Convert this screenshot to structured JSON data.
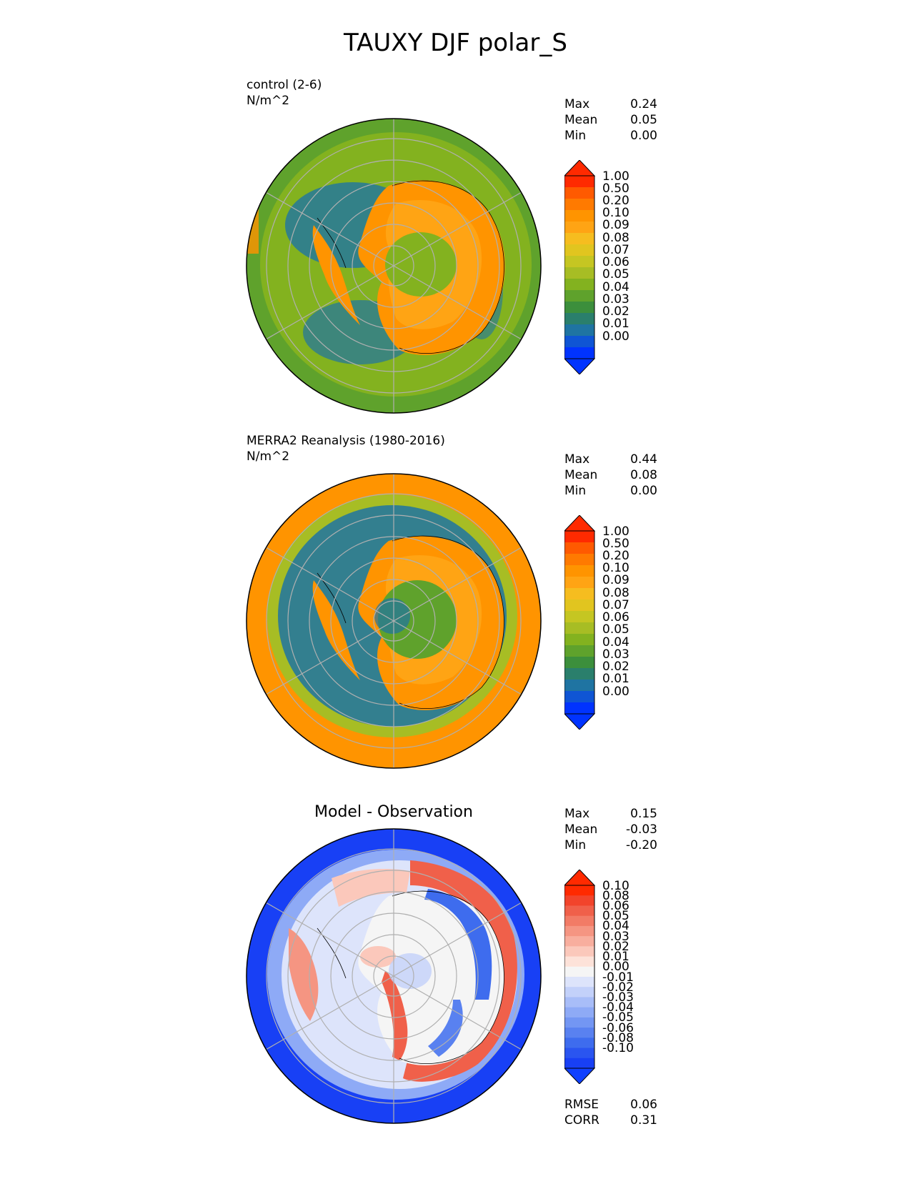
{
  "figure_title": "TAUXY DJF polar_S",
  "panels": [
    {
      "label_line1": "control (2-6)",
      "label_line2": "N/m^2",
      "stats": {
        "max_label": "Max",
        "max": "0.24",
        "mean_label": "Mean",
        "mean": "0.05",
        "min_label": "Min",
        "min": "0.00"
      },
      "colorbar": {
        "ticks": [
          "1.00",
          "0.50",
          "0.20",
          "0.10",
          "0.09",
          "0.08",
          "0.07",
          "0.06",
          "0.05",
          "0.04",
          "0.03",
          "0.02",
          "0.01",
          "0.00"
        ],
        "colors": [
          "#ff2a00",
          "#ff5a00",
          "#ff7a00",
          "#ff9400",
          "#ffa414",
          "#f6bd1f",
          "#e1c51f",
          "#c5c622",
          "#a7bd24",
          "#83b21f",
          "#5fa22c",
          "#3c8f3c",
          "#2a7f6c",
          "#1f74a2",
          "#0f55d4",
          "#0033ff"
        ],
        "over_color": "#ff2a00",
        "under_color": "#0033ff"
      }
    },
    {
      "label_line1": "MERRA2 Reanalysis (1980-2016)",
      "label_line2": "N/m^2",
      "stats": {
        "max_label": "Max",
        "max": "0.44",
        "mean_label": "Mean",
        "mean": "0.08",
        "min_label": "Min",
        "min": "0.00"
      },
      "colorbar": {
        "ticks": [
          "1.00",
          "0.50",
          "0.20",
          "0.10",
          "0.09",
          "0.08",
          "0.07",
          "0.06",
          "0.05",
          "0.04",
          "0.03",
          "0.02",
          "0.01",
          "0.00"
        ],
        "colors": [
          "#ff2a00",
          "#ff5a00",
          "#ff7a00",
          "#ff9400",
          "#ffa414",
          "#f6bd1f",
          "#e1c51f",
          "#c5c622",
          "#a7bd24",
          "#83b21f",
          "#5fa22c",
          "#3c8f3c",
          "#2a7f6c",
          "#1f74a2",
          "#0f55d4",
          "#0033ff"
        ],
        "over_color": "#ff2a00",
        "under_color": "#0033ff"
      }
    },
    {
      "title": "Model - Observation",
      "stats": {
        "max_label": "Max",
        "max": "0.15",
        "mean_label": "Mean",
        "mean": "-0.03",
        "min_label": "Min",
        "min": "-0.20"
      },
      "extra_stats": {
        "rmse_label": "RMSE",
        "rmse": "0.06",
        "corr_label": "CORR",
        "corr": "0.31"
      },
      "colorbar": {
        "ticks": [
          "0.10",
          "0.08",
          "0.06",
          "0.05",
          "0.04",
          "0.03",
          "0.02",
          "0.01",
          "0.00",
          "-0.01",
          "-0.02",
          "-0.03",
          "-0.04",
          "-0.05",
          "-0.06",
          "-0.08",
          "-0.10"
        ],
        "colors": [
          "#ff2a00",
          "#f2442b",
          "#f0604a",
          "#f27b66",
          "#f59582",
          "#f8ae9e",
          "#fbc8bb",
          "#fde2d9",
          "#f5f5f5",
          "#dde4fb",
          "#c3d1fa",
          "#a8bdf8",
          "#8eaaf6",
          "#7396f3",
          "#5981f0",
          "#3e6cee",
          "#2a55f0",
          "#1840f5"
        ],
        "over_color": "#ff2a00",
        "under_color": "#1040ff"
      }
    }
  ],
  "map_colors": {
    "p1": {
      "ocean_outer": "#5fa22c",
      "ring": "#83b21f",
      "blue": "#1f74a2",
      "land_outer": "#ff9400",
      "land_mid": "#ffa414",
      "land_inner": "#c5c622",
      "interior": "#83b21f"
    },
    "p2": {
      "ocean_outer": "#ff9400",
      "ring": "#83b21f",
      "blue": "#1f74a2",
      "land_outer": "#ff9400",
      "land_mid": "#ffa414",
      "land_inner": "#83b21f",
      "interior": "#5fa22c"
    },
    "p3": {
      "ocean_outer": "#1840f5",
      "ring": "#8eaaf6",
      "pos": "#f0604a",
      "pos_light": "#fbc8bb",
      "neg": "#3e6cee",
      "neutral": "#f5f5f5"
    }
  }
}
